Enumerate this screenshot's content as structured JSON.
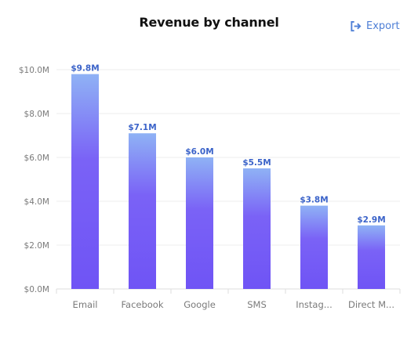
{
  "header": {
    "title": "Revenue by channel",
    "export_label": "Export",
    "export_icon": "export-icon"
  },
  "colors": {
    "bar_top": "#8fb2f5",
    "bar_bottom": "#6f54f5",
    "data_label": "#3b63c9",
    "grid": "#eeeeee",
    "accent": "#4e7fd6"
  },
  "chart_data": {
    "type": "bar",
    "title": "Revenue by channel",
    "xlabel": "",
    "ylabel": "",
    "categories": [
      "Email",
      "Facebook",
      "Google",
      "SMS",
      "Instag...",
      "Direct M..."
    ],
    "values": [
      9.8,
      7.1,
      6.0,
      5.5,
      3.8,
      2.9
    ],
    "data_labels": [
      "$9.8M",
      "$7.1M",
      "$6.0M",
      "$5.5M",
      "$3.8M",
      "$2.9M"
    ],
    "ylim": [
      0,
      10
    ],
    "yticks": [
      0,
      2,
      4,
      6,
      8,
      10
    ],
    "ytick_labels": [
      "$0.0M",
      "$2.0M",
      "$4.0M",
      "$6.0M",
      "$8.0M",
      "$10.0M"
    ],
    "grid": true,
    "legend": "none"
  }
}
